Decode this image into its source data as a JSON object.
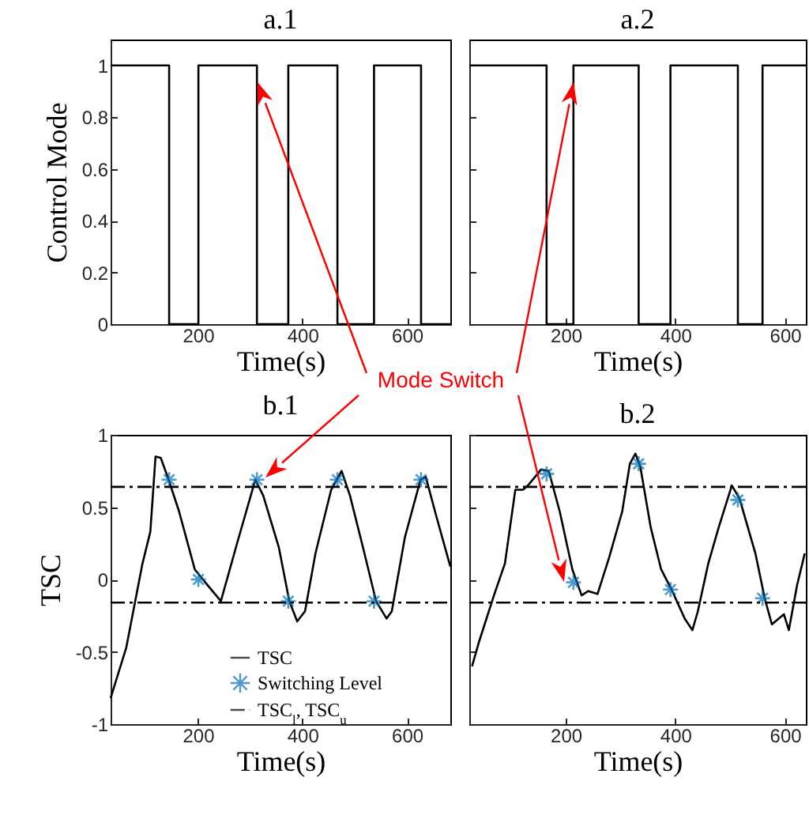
{
  "chart_data": [
    {
      "type": "step",
      "title": "a.1",
      "xlabel": "Time(s)",
      "ylabel": "Control Mode",
      "xlim": [
        33,
        683
      ],
      "xticks": [
        200,
        400,
        600
      ],
      "ylim": [
        0,
        1.1
      ],
      "yticks": [
        0,
        0.2,
        0.4,
        0.6,
        0.8,
        1
      ],
      "annotations": [
        "Mode Switch"
      ],
      "series": [
        {
          "color": "#000000",
          "x": [
            33,
            145,
            201,
            313,
            373,
            467,
            537,
            627,
            683
          ],
          "values": [
            1,
            0,
            1,
            0,
            1,
            0,
            1,
            0,
            0
          ]
        }
      ]
    },
    {
      "type": "step",
      "title": "a.2",
      "xlabel": "Time(s)",
      "xlim": [
        24,
        638
      ],
      "xticks": [
        200,
        400,
        600
      ],
      "ylim": [
        0,
        1.1
      ],
      "yticks": [
        0,
        0.2,
        0.4,
        0.6,
        0.8,
        1
      ],
      "tick_labels": "x",
      "series": [
        {
          "color": "#000000",
          "x": [
            24,
            165,
            214,
            333,
            391,
            514,
            559,
            638
          ],
          "values": [
            1,
            0,
            1,
            0,
            1,
            0,
            1,
            1
          ]
        }
      ]
    },
    {
      "type": "line",
      "title": "b.1",
      "xlabel": "Time(s)",
      "ylabel": "TSC",
      "xlim": [
        33,
        683
      ],
      "xticks": [
        200,
        400,
        600
      ],
      "ylim": [
        -1,
        1
      ],
      "yticks": [
        -1,
        -0.5,
        0,
        0.5,
        1
      ],
      "legend": "bottom right",
      "series": [
        {
          "name": "TSC",
          "color": "#000000",
          "x": [
            33,
            63,
            94,
            109,
            119,
            129,
            144,
            164,
            194,
            214,
            244,
            275,
            310,
            325,
            355,
            375,
            390,
            405,
            425,
            455,
            475,
            491,
            516,
            541,
            561,
            571,
            596,
            626,
            636,
            656,
            683
          ],
          "values": [
            -0.82,
            -0.47,
            0.11,
            0.33,
            0.85,
            0.84,
            0.69,
            0.47,
            0.07,
            -0.02,
            -0.15,
            0.25,
            0.69,
            0.58,
            0.22,
            -0.15,
            -0.29,
            -0.22,
            0.18,
            0.62,
            0.75,
            0.58,
            0.22,
            -0.15,
            -0.27,
            -0.22,
            0.29,
            0.69,
            0.71,
            0.44,
            0.09
          ]
        },
        {
          "name": "Switching Level",
          "type": "scatter",
          "marker": "cross",
          "color": "#0072bd",
          "x": [
            145,
            201,
            313,
            373,
            467,
            537,
            627
          ],
          "values": [
            0.69,
            0,
            0.69,
            -0.15,
            0.69,
            -0.15,
            0.69
          ]
        },
        {
          "name": "TSC$_{l}$, TSC$_{u}$",
          "line_style": "dashed",
          "color": "#000000",
          "x": [
            33,
            683
          ],
          "values": [
            0.64,
            0.64
          ]
        },
        {
          "line_style": "dashed",
          "color": "#000000",
          "x": [
            33,
            683
          ],
          "values": [
            -0.16,
            -0.16
          ]
        }
      ]
    },
    {
      "type": "line",
      "title": "b.2",
      "xlabel": "Time(s)",
      "xlim": [
        24,
        638
      ],
      "xticks": [
        200,
        400,
        600
      ],
      "ylim": [
        -1,
        1
      ],
      "yticks": [
        -1,
        -0.5,
        0,
        0.5,
        1
      ],
      "tick_labels": "x",
      "series": [
        {
          "color": "#000000",
          "x": [
            29,
            41,
            69,
            89,
            108,
            122,
            131,
            155,
            169,
            189,
            212,
            229,
            241,
            258,
            279,
            303,
            317,
            327,
            336,
            355,
            374,
            393,
            417,
            431,
            441,
            460,
            479,
            503,
            517,
            546,
            563,
            576,
            598,
            607,
            622,
            636
          ],
          "values": [
            -0.6,
            -0.44,
            -0.11,
            0.11,
            0.62,
            0.62,
            0.65,
            0.76,
            0.75,
            0.47,
            0.07,
            -0.11,
            -0.08,
            -0.1,
            0.15,
            0.47,
            0.8,
            0.87,
            0.78,
            0.36,
            0.07,
            -0.07,
            -0.27,
            -0.35,
            -0.22,
            0.11,
            0.36,
            0.65,
            0.56,
            0.18,
            -0.13,
            -0.31,
            -0.24,
            -0.35,
            -0.04,
            0.18
          ]
        },
        {
          "type": "scatter",
          "marker": "cross",
          "color": "#0072bd",
          "x": [
            165,
            214,
            333,
            391,
            514,
            559
          ],
          "values": [
            0.73,
            -0.02,
            0.8,
            -0.07,
            0.55,
            -0.13
          ]
        },
        {
          "line_style": "dashed",
          "color": "#000000",
          "x": [
            24,
            638
          ],
          "values": [
            0.64,
            0.64
          ]
        },
        {
          "line_style": "dashed",
          "color": "#000000",
          "x": [
            24,
            638
          ],
          "values": [
            -0.16,
            -0.16
          ]
        }
      ]
    }
  ]
}
